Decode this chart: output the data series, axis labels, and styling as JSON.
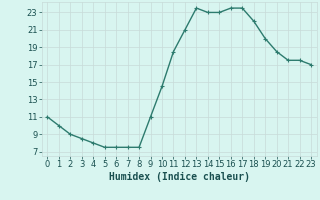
{
  "x": [
    0,
    1,
    2,
    3,
    4,
    5,
    6,
    7,
    8,
    9,
    10,
    11,
    12,
    13,
    14,
    15,
    16,
    17,
    18,
    19,
    20,
    21,
    22,
    23
  ],
  "y": [
    11,
    10,
    9,
    8.5,
    8,
    7.5,
    7.5,
    7.5,
    7.5,
    11,
    14.5,
    18.5,
    21,
    23.5,
    23,
    23,
    23.5,
    23.5,
    22,
    20,
    18.5,
    17.5,
    17.5,
    17
  ],
  "xlabel": "Humidex (Indice chaleur)",
  "xlim": [
    -0.5,
    23.5
  ],
  "ylim": [
    6.5,
    24.2
  ],
  "yticks": [
    7,
    9,
    11,
    13,
    15,
    17,
    19,
    21,
    23
  ],
  "xticks": [
    0,
    1,
    2,
    3,
    4,
    5,
    6,
    7,
    8,
    9,
    10,
    11,
    12,
    13,
    14,
    15,
    16,
    17,
    18,
    19,
    20,
    21,
    22,
    23
  ],
  "line_color": "#2d7b6e",
  "bg_color": "#d8f5f0",
  "grid_color_major": "#c8dbd8",
  "grid_color_minor": "#e0efec",
  "text_color": "#1a5050",
  "marker": "+",
  "marker_size": 3.5,
  "line_width": 1.0,
  "tick_fontsize": 6.0,
  "xlabel_fontsize": 7.0
}
